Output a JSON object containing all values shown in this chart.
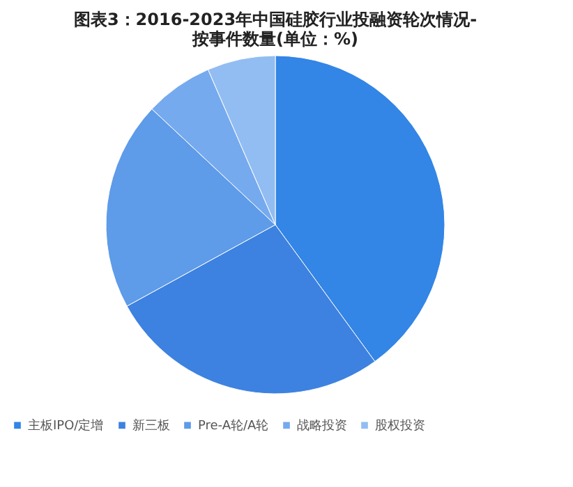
{
  "chart_data": {
    "type": "pie",
    "title": "图表3：2016-2023年中国硅胶行业投融资轮次情况-按事件数量(单位：%)",
    "categories": [
      "主板IPO/定增",
      "新三板",
      "Pre-A轮/A轮",
      "战略投资",
      "股权投资"
    ],
    "values": [
      40,
      27,
      20,
      6.5,
      6.5
    ],
    "colors": [
      "#3385e6",
      "#3d82e0",
      "#5e9be9",
      "#76aaee",
      "#92bdf2"
    ],
    "legend": "bottom"
  }
}
